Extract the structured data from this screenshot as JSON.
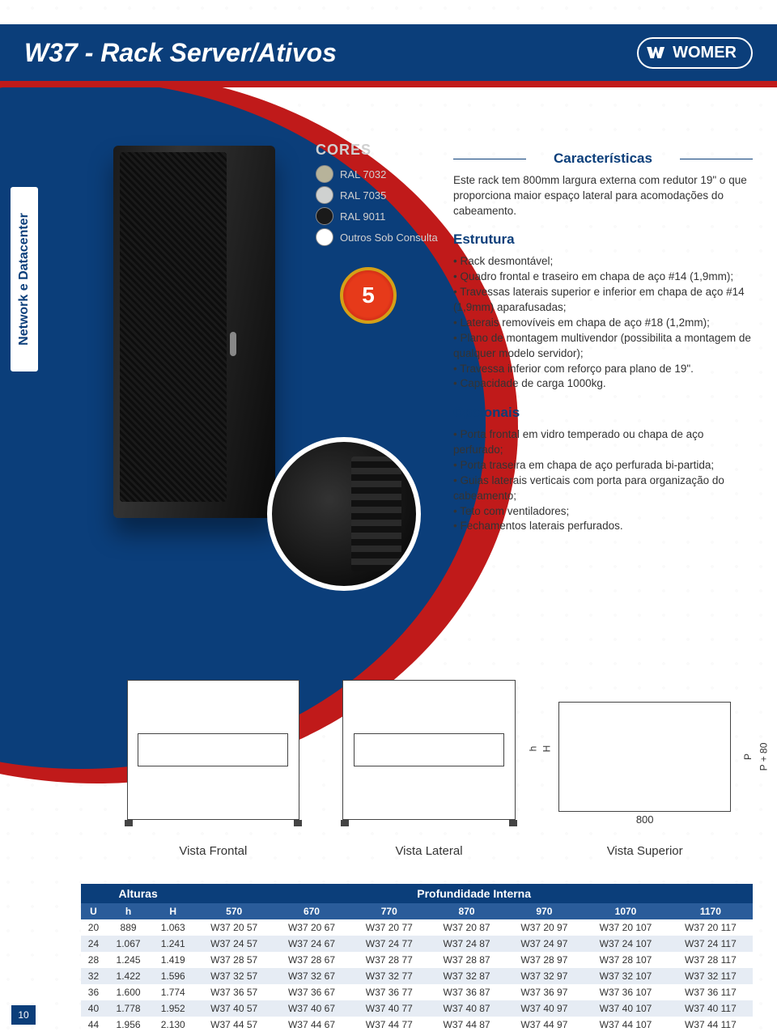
{
  "header": {
    "title": "W37 - Rack Server/Ativos",
    "logo_text": "WOMER"
  },
  "side_tab": "Network e Datacenter",
  "colors": {
    "title": "CORES",
    "items": [
      {
        "label": "RAL 7032",
        "hex": "#b7b39a"
      },
      {
        "label": "RAL 7035",
        "hex": "#cfd1d0"
      },
      {
        "label": "RAL 9011",
        "hex": "#1a1a1a"
      },
      {
        "label": "Outros Sob Consulta",
        "hex": "#ffffff",
        "line2": "Consulta"
      }
    ]
  },
  "warranty_years": "5",
  "caracteristicas": {
    "title": "Características",
    "intro": "Este rack tem 800mm largura externa com redutor 19\" o que proporciona maior espaço lateral para acomodações do cabeamento."
  },
  "estrutura": {
    "title": "Estrutura",
    "items": [
      "Rack desmontável;",
      "Quadro frontal e traseiro em chapa de aço #14 (1,9mm);",
      "Travessas laterais superior e inferior em chapa de aço #14 (1,9mm) aparafusadas;",
      "Laterais removíveis em chapa de aço #18 (1,2mm);",
      "Plano de montagem multivendor (possibilita a montagem de qualquer modelo servidor);",
      "Travessa inferior com reforço para plano de 19\".",
      "Capacidade de carga 1000kg."
    ]
  },
  "opcionais": {
    "title": "Opcionais",
    "items": [
      "Porta frontal em vidro temperado ou chapa de aço perfurado;",
      "Porta traseira em chapa de aço perfurada bi-partida;",
      "Guias laterais verticais com porta para organização do cabeamento;",
      "Teto com ventiladores;",
      "Fechamentos laterais perfurados."
    ]
  },
  "drawings": {
    "frontal": "Vista Frontal",
    "lateral": "Vista Lateral",
    "superior": "Vista Superior",
    "dim_h": "h",
    "dim_H": "H",
    "dim_P": "P",
    "dim_P80": "P + 80",
    "dim_800": "800"
  },
  "table": {
    "group_left": "Alturas",
    "group_right": "Profundidade Interna",
    "cols": [
      "U",
      "h",
      "H",
      "570",
      "670",
      "770",
      "870",
      "970",
      "1070",
      "1170"
    ],
    "rows": [
      [
        "20",
        "889",
        "1.063",
        "W37 20 57",
        "W37 20 67",
        "W37 20 77",
        "W37 20 87",
        "W37 20 97",
        "W37 20 107",
        "W37 20 117"
      ],
      [
        "24",
        "1.067",
        "1.241",
        "W37 24 57",
        "W37 24 67",
        "W37 24 77",
        "W37 24 87",
        "W37 24 97",
        "W37 24 107",
        "W37 24 117"
      ],
      [
        "28",
        "1.245",
        "1.419",
        "W37 28 57",
        "W37 28 67",
        "W37 28 77",
        "W37 28 87",
        "W37 28 97",
        "W37 28 107",
        "W37 28 117"
      ],
      [
        "32",
        "1.422",
        "1.596",
        "W37 32 57",
        "W37 32 67",
        "W37 32 77",
        "W37 32 87",
        "W37 32 97",
        "W37 32 107",
        "W37 32 117"
      ],
      [
        "36",
        "1.600",
        "1.774",
        "W37 36 57",
        "W37 36 67",
        "W37 36 77",
        "W37 36 87",
        "W37 36 97",
        "W37 36 107",
        "W37 36 117"
      ],
      [
        "40",
        "1.778",
        "1.952",
        "W37 40 57",
        "W37 40 67",
        "W37 40 77",
        "W37 40 87",
        "W37 40 97",
        "W37 40 107",
        "W37 40 117"
      ],
      [
        "44",
        "1.956",
        "2.130",
        "W37 44 57",
        "W37 44 67",
        "W37 44 77",
        "W37 44 87",
        "W37 44 97",
        "W37 44 107",
        "W37 44 117"
      ]
    ]
  },
  "page_number": "10",
  "palette": {
    "primary": "#0b3e7a",
    "accent_red": "#c01a1a",
    "row_alt": "#e6ecf4"
  }
}
